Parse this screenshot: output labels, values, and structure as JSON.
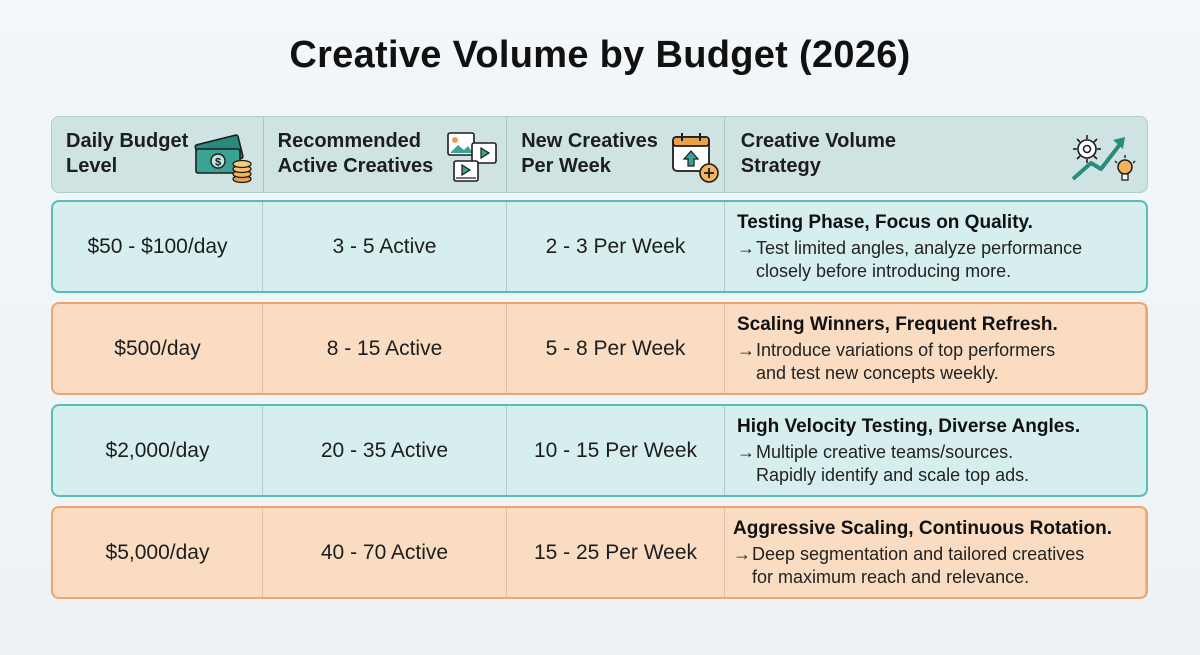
{
  "title": "Creative Volume by Budget (2026)",
  "columns": [
    {
      "label_line1": "Daily Budget",
      "label_line2": "Level",
      "icon": "money-stack-icon"
    },
    {
      "label_line1": "Recommended",
      "label_line2": "Active Creatives",
      "icon": "media-files-icon"
    },
    {
      "label_line1": "New Creatives",
      "label_line2": "Per Week",
      "icon": "calendar-upload-icon"
    },
    {
      "label_line1": "Creative Volume",
      "label_line2": "Strategy",
      "icon": "growth-gear-bulb-icon"
    }
  ],
  "arrow": "→",
  "rows": [
    {
      "tone": "teal",
      "budget": "$50 - $100/day",
      "active": "3 - 5 Active",
      "per_week": "2 - 3 Per Week",
      "strategy_title": "Testing Phase, Focus on Quality.",
      "strategy_line1": "Test limited angles, analyze performance",
      "strategy_line2": "closely before introducing more."
    },
    {
      "tone": "peach",
      "budget": "$500/day",
      "active": "8 - 15 Active",
      "per_week": "5 - 8 Per Week",
      "strategy_title": "Scaling Winners, Frequent Refresh.",
      "strategy_line1": "Introduce variations of top performers",
      "strategy_line2": "and test new concepts weekly."
    },
    {
      "tone": "teal",
      "budget": "$2,000/day",
      "active": "20 - 35 Active",
      "per_week": "10 - 15 Per Week",
      "strategy_title": "High Velocity Testing, Diverse Angles.",
      "strategy_line1": "Multiple creative teams/sources.",
      "strategy_line2": "Rapidly identify and scale top ads."
    },
    {
      "tone": "peach",
      "budget": "$5,000/day",
      "active": "40 - 70 Active",
      "per_week": "15 - 25 Per Week",
      "strategy_title": "Aggressive Scaling, Continuous Rotation.",
      "strategy_line1": "Deep segmentation and tailored creatives",
      "strategy_line2": "for maximum reach and relevance."
    }
  ],
  "colors": {
    "teal_fill": "#d6efee",
    "teal_border": "#57bcbc",
    "peach_fill": "#f9dcc2",
    "peach_border": "#eca56f",
    "header_fill": "#cfe3e3"
  }
}
